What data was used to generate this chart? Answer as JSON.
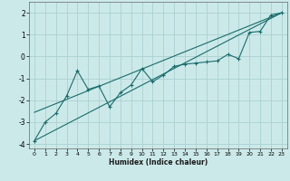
{
  "title": "",
  "xlabel": "Humidex (Indice chaleur)",
  "ylabel": "",
  "bg_color": "#cce9e9",
  "grid_color": "#aad0d0",
  "line_color": "#1a6b6b",
  "xlim": [
    -0.5,
    23.5
  ],
  "ylim": [
    -4.2,
    2.5
  ],
  "yticks": [
    -4,
    -3,
    -2,
    -1,
    0,
    1,
    2
  ],
  "xticks": [
    0,
    1,
    2,
    3,
    4,
    5,
    6,
    7,
    8,
    9,
    10,
    11,
    12,
    13,
    14,
    15,
    16,
    17,
    18,
    19,
    20,
    21,
    22,
    23
  ],
  "data_x": [
    0,
    1,
    2,
    3,
    4,
    5,
    6,
    7,
    8,
    9,
    10,
    11,
    12,
    13,
    14,
    15,
    16,
    17,
    18,
    19,
    20,
    21,
    22,
    23
  ],
  "data_y": [
    -3.85,
    -3.0,
    -2.6,
    -1.8,
    -0.65,
    -1.5,
    -1.35,
    -2.3,
    -1.65,
    -1.3,
    -0.55,
    -1.15,
    -0.85,
    -0.45,
    -0.35,
    -0.3,
    -0.25,
    -0.2,
    0.1,
    -0.1,
    1.1,
    1.15,
    1.9,
    2.0
  ],
  "line1_x": [
    0,
    23
  ],
  "line1_y": [
    -3.85,
    2.0
  ],
  "line2_x": [
    0,
    23
  ],
  "line2_y": [
    -2.55,
    2.0
  ],
  "figsize": [
    3.2,
    2.0
  ],
  "dpi": 100
}
